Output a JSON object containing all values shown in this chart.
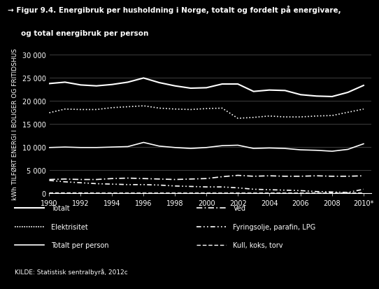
{
  "title_line1": "→ Figur 9.4. Energibruk per husholdning i Norge, totalt og fordelt på energivare,",
  "title_line2": "og total energibruk per person",
  "ylabel": "kWh TILFØRT ENERGI I BOLIGER OG FRITIDSHUS",
  "source": "KILDE: Statistisk sentralbyrå, 2012c",
  "background_color": "#000000",
  "text_color": "#ffffff",
  "grid_color": "#555555",
  "years": [
    1990,
    1991,
    1992,
    1993,
    1994,
    1995,
    1996,
    1997,
    1998,
    1999,
    2000,
    2001,
    2002,
    2003,
    2004,
    2005,
    2006,
    2007,
    2008,
    2009,
    2010
  ],
  "totalt": [
    23700,
    24000,
    23400,
    23200,
    23500,
    24000,
    24900,
    23900,
    23200,
    22700,
    22800,
    23600,
    23600,
    22000,
    22300,
    22200,
    21300,
    21000,
    20900,
    21800,
    23300
  ],
  "elektrisitet": [
    17400,
    18200,
    18100,
    18100,
    18500,
    18700,
    18900,
    18400,
    18200,
    18100,
    18300,
    18400,
    16200,
    16400,
    16700,
    16500,
    16500,
    16700,
    16800,
    17500,
    18200
  ],
  "totalt_per_person": [
    9900,
    10000,
    9900,
    9900,
    10000,
    10100,
    11000,
    10200,
    9900,
    9700,
    9900,
    10300,
    10400,
    9700,
    9800,
    9700,
    9400,
    9300,
    9100,
    9500,
    10700
  ],
  "ved": [
    3000,
    3100,
    3000,
    3000,
    3200,
    3300,
    3200,
    3100,
    3000,
    3100,
    3200,
    3600,
    3900,
    3700,
    3800,
    3700,
    3700,
    3800,
    3700,
    3700,
    3800
  ],
  "fyringsolje": [
    2800,
    2500,
    2300,
    2100,
    2000,
    1900,
    1900,
    1800,
    1600,
    1500,
    1400,
    1400,
    1200,
    900,
    800,
    700,
    600,
    400,
    300,
    200,
    900
  ],
  "kull": [
    100,
    100,
    100,
    80,
    80,
    80,
    80,
    80,
    80,
    80,
    80,
    80,
    80,
    80,
    80,
    80,
    80,
    80,
    80,
    80,
    100
  ],
  "ylim": [
    0,
    30000
  ],
  "yticks": [
    0,
    5000,
    10000,
    15000,
    20000,
    25000,
    30000
  ],
  "xtick_years": [
    1990,
    1992,
    1994,
    1996,
    1998,
    2000,
    2002,
    2004,
    2006,
    2008,
    2010
  ]
}
